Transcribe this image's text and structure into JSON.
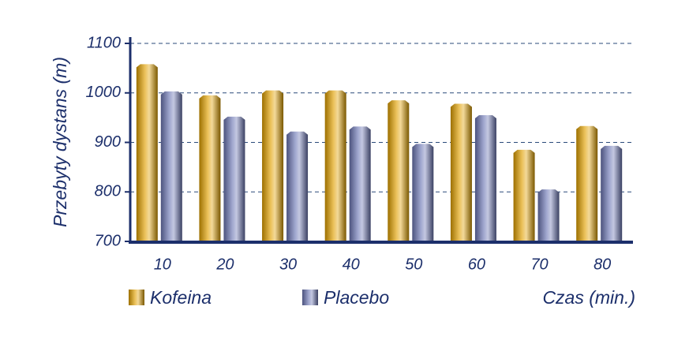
{
  "chart_data": {
    "type": "bar",
    "y_label": "Przebyty dystans (m)",
    "x_label": "Czas (min.)",
    "categories": [
      "10",
      "20",
      "30",
      "40",
      "50",
      "60",
      "70",
      "80"
    ],
    "series": [
      {
        "name": "Kofeina",
        "color": "#e0a000",
        "values": [
          1058,
          995,
          1005,
          1005,
          985,
          978,
          885,
          933
        ]
      },
      {
        "name": "Placebo",
        "color": "#6c76b4",
        "values": [
          1003,
          952,
          922,
          932,
          897,
          955,
          805,
          893
        ]
      }
    ],
    "ylim": [
      700,
      1100
    ],
    "yticks": [
      700,
      800,
      900,
      1000,
      1100
    ],
    "grid": true
  }
}
